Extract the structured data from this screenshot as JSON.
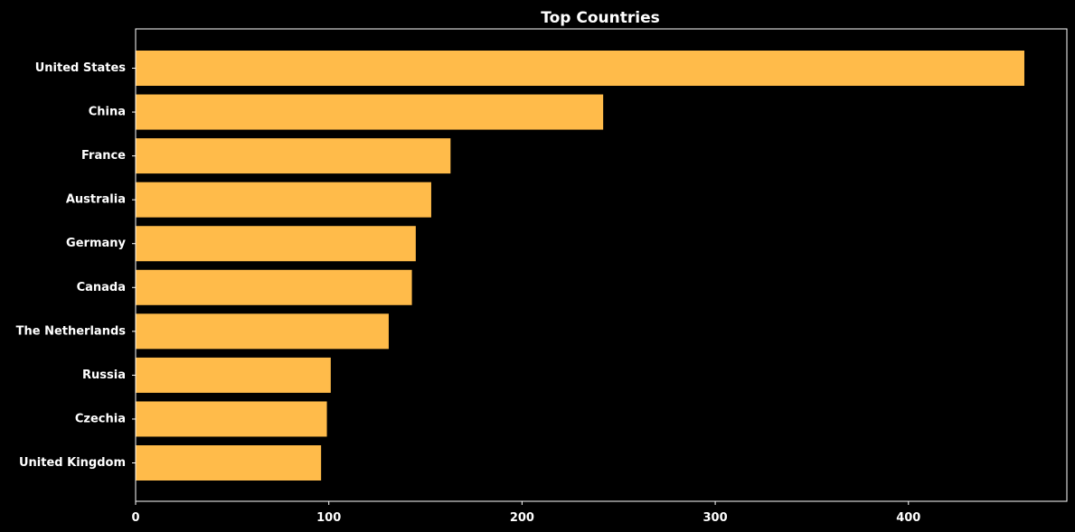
{
  "chart_data": {
    "type": "bar",
    "orientation": "horizontal",
    "title": "Top Countries",
    "xlabel": "",
    "ylabel": "",
    "categories": [
      "United States",
      "China",
      "France",
      "Australia",
      "Germany",
      "Canada",
      "The Netherlands",
      "Russia",
      "Czechia",
      "United Kingdom"
    ],
    "values": [
      460,
      242,
      163,
      153,
      145,
      143,
      131,
      101,
      99,
      96
    ],
    "xlim": [
      0,
      482
    ],
    "xticks": [
      0,
      100,
      200,
      300,
      400
    ],
    "grid": false,
    "legend": "none",
    "colors": {
      "background": "#000000",
      "bar": "#ffbb4a",
      "text": "#ffffff",
      "axis": "#ffffff"
    }
  }
}
